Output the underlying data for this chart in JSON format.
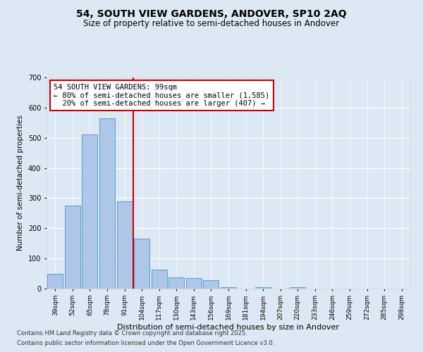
{
  "title": "54, SOUTH VIEW GARDENS, ANDOVER, SP10 2AQ",
  "subtitle": "Size of property relative to semi-detached houses in Andover",
  "xlabel": "Distribution of semi-detached houses by size in Andover",
  "ylabel": "Number of semi-detached properties",
  "categories": [
    "39sqm",
    "52sqm",
    "65sqm",
    "78sqm",
    "91sqm",
    "104sqm",
    "117sqm",
    "130sqm",
    "143sqm",
    "156sqm",
    "169sqm",
    "181sqm",
    "194sqm",
    "207sqm",
    "220sqm",
    "233sqm",
    "246sqm",
    "259sqm",
    "272sqm",
    "285sqm",
    "298sqm"
  ],
  "values": [
    50,
    275,
    510,
    565,
    290,
    165,
    62,
    38,
    35,
    27,
    5,
    0,
    5,
    0,
    4,
    0,
    0,
    0,
    0,
    0,
    0
  ],
  "bar_color": "#aec6e8",
  "bar_edge_color": "#5b9bd5",
  "red_line_x": 4.5,
  "property_size_label": "54 SOUTH VIEW GARDENS: 99sqm",
  "pct_smaller": 80,
  "pct_smaller_count": 1585,
  "pct_larger": 20,
  "pct_larger_count": 407,
  "red_line_color": "#cc0000",
  "annotation_box_color": "#cc0000",
  "footnote1": "Contains HM Land Registry data © Crown copyright and database right 2025.",
  "footnote2": "Contains public sector information licensed under the Open Government Licence v3.0.",
  "ylim": [
    0,
    700
  ],
  "yticks": [
    0,
    100,
    200,
    300,
    400,
    500,
    600,
    700
  ],
  "title_fontsize": 10,
  "subtitle_fontsize": 8.5,
  "background_color": "#dce9f5",
  "plot_bg_color": "#dce9f5",
  "annotation_fontsize": 7.5,
  "ylabel_fontsize": 7.5,
  "xlabel_fontsize": 8,
  "tick_fontsize": 6.5,
  "ytick_fontsize": 7,
  "footnote_fontsize": 6
}
